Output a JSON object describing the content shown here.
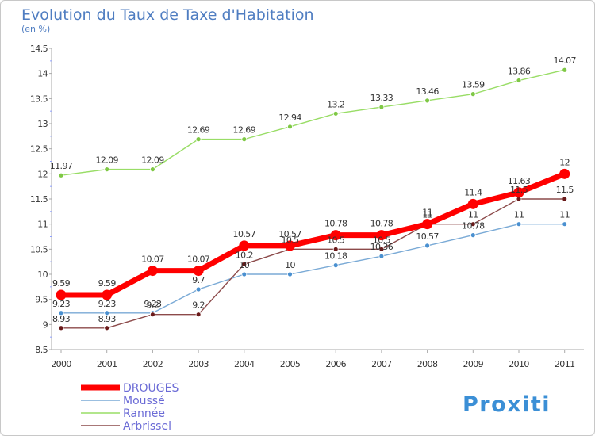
{
  "chart_data": {
    "type": "line",
    "title": "Evolution du Taux de Taxe d'Habitation",
    "subtitle": "(en %)",
    "xlabel": "",
    "ylabel": "",
    "x": [
      "2000",
      "2001",
      "2002",
      "2003",
      "2004",
      "2005",
      "2006",
      "2007",
      "2008",
      "2009",
      "2010",
      "2011"
    ],
    "ylim": [
      8.5,
      14.5
    ],
    "yticks": [
      "8.5",
      "9",
      "9.5",
      "10",
      "10.5",
      "11",
      "11.5",
      "12",
      "12.5",
      "13",
      "13.5",
      "14",
      "14.5"
    ],
    "grid": false,
    "legend_position": "bottom-left",
    "series": [
      {
        "name": "DROUGES",
        "color": "#ff0000",
        "values": [
          9.59,
          9.59,
          10.07,
          10.07,
          10.57,
          10.57,
          10.78,
          10.78,
          11,
          11.4,
          11.63,
          12
        ],
        "labels": [
          "9.59",
          "9.59",
          "10.07",
          "10.07",
          "10.57",
          "10.57",
          "10.78",
          "10.78",
          "11",
          "11.4",
          "11.63",
          "12"
        ]
      },
      {
        "name": "Moussé",
        "color": "#7aaad6",
        "values": [
          9.23,
          9.23,
          9.23,
          9.7,
          10,
          10,
          10.18,
          10.36,
          10.57,
          10.78,
          11,
          11
        ],
        "labels": [
          "9.23",
          "9.23",
          "9.23",
          "9.7",
          "10",
          "10",
          "10.18",
          "10.36",
          "10.57",
          "10.78",
          "11",
          "11"
        ]
      },
      {
        "name": "Rannée",
        "color": "#99dd66",
        "values": [
          11.97,
          12.09,
          12.09,
          12.69,
          12.69,
          12.94,
          13.2,
          13.33,
          13.46,
          13.59,
          13.86,
          14.07
        ],
        "labels": [
          "11.97",
          "12.09",
          "12.09",
          "12.69",
          "12.69",
          "12.94",
          "13.2",
          "13.33",
          "13.46",
          "13.59",
          "13.86",
          "14.07"
        ]
      },
      {
        "name": "Arbrissel",
        "color": "#8c4a4a",
        "values": [
          8.93,
          8.93,
          9.2,
          9.2,
          10.2,
          10.5,
          10.5,
          10.5,
          11,
          11,
          11.5,
          11.5
        ],
        "labels": [
          "8.93",
          "8.93",
          "9.2",
          "9.2",
          "10.2",
          "10.5",
          "10.5",
          "10.5",
          "11",
          "11",
          "11.5",
          "11.5"
        ]
      }
    ]
  },
  "logo": {
    "text": "Proxiti"
  }
}
